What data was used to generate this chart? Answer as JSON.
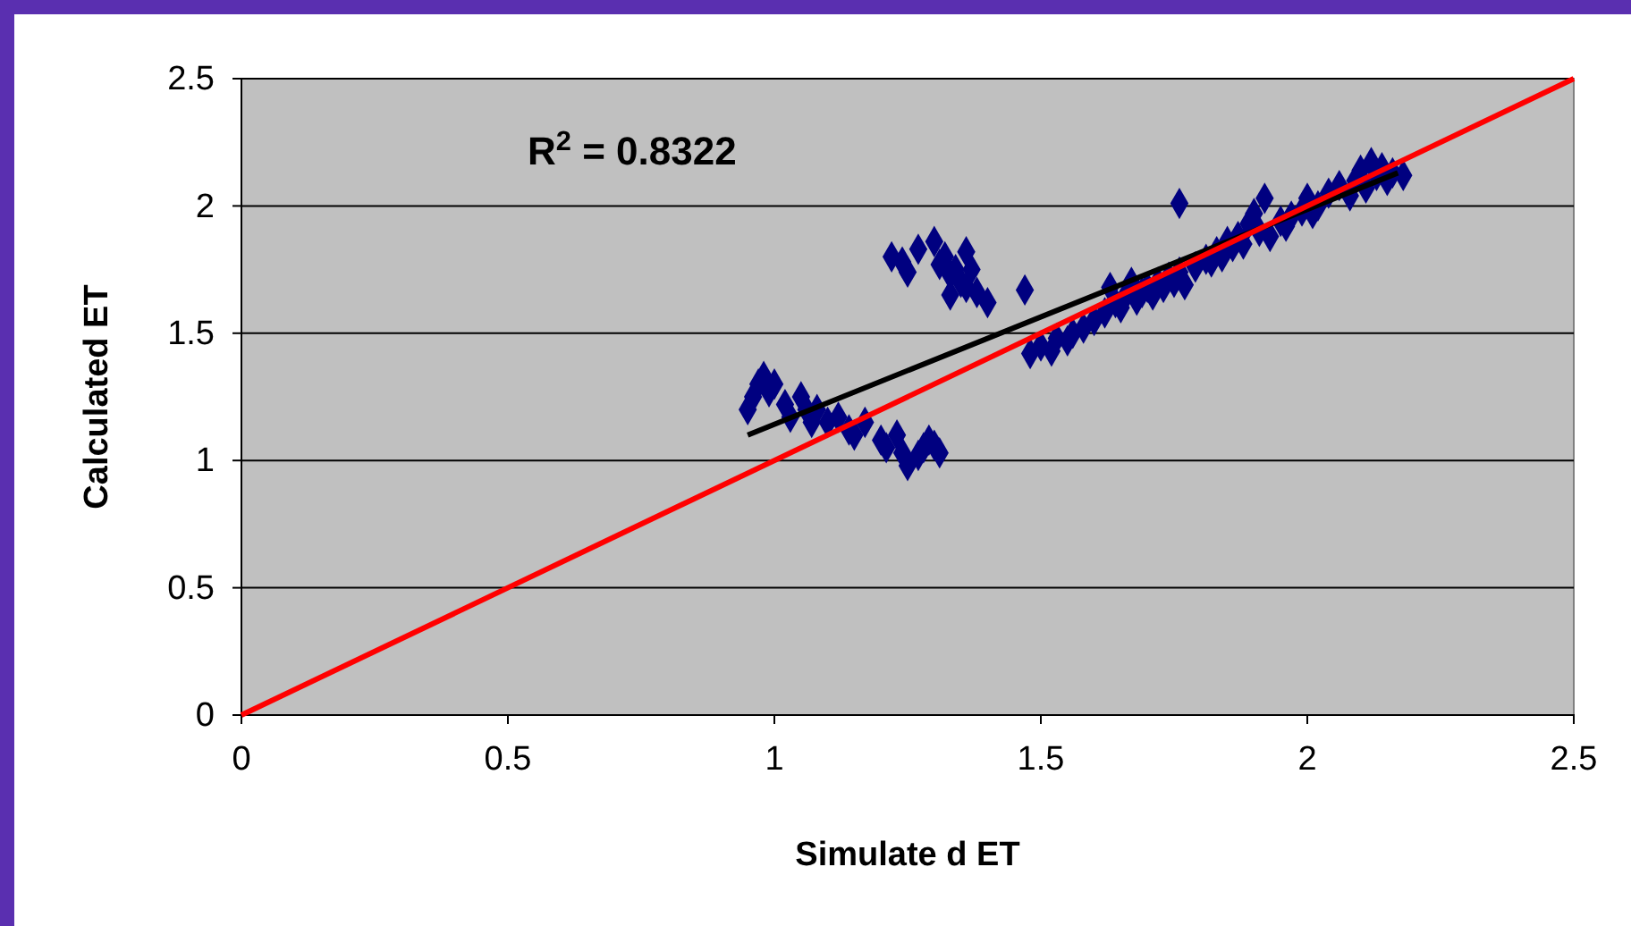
{
  "chart_data": {
    "type": "scatter",
    "xlabel": "Simulate d ET",
    "ylabel": "Calculated ET",
    "annotations": [
      "R$^{2}$ = 0.8322"
    ],
    "xlim": [
      0,
      2.5
    ],
    "xticks": [
      0,
      0.5,
      1,
      1.5,
      2,
      2.5
    ],
    "ylim": [
      0,
      2.5
    ],
    "yticks": [
      0,
      0.5,
      1,
      1.5,
      2,
      2.5
    ],
    "grid": "y",
    "series": [
      {
        "color": "#000080",
        "marker": "diamond",
        "x": [
          0.95,
          0.96,
          0.97,
          0.98,
          0.99,
          1.0,
          1.02,
          1.03,
          1.05,
          1.06,
          1.07,
          1.08,
          1.1,
          1.12,
          1.14,
          1.15,
          1.17,
          1.2,
          1.21,
          1.23,
          1.24,
          1.25,
          1.27,
          1.28,
          1.29,
          1.3,
          1.31,
          1.22,
          1.24,
          1.25,
          1.27,
          1.3,
          1.31,
          1.32,
          1.33,
          1.34,
          1.35,
          1.33,
          1.36,
          1.37,
          1.38,
          1.4,
          1.36,
          1.47,
          1.48,
          1.5,
          1.52,
          1.53,
          1.55,
          1.56,
          1.58,
          1.6,
          1.62,
          1.63,
          1.64,
          1.65,
          1.66,
          1.67,
          1.68,
          1.69,
          1.7,
          1.71,
          1.72,
          1.73,
          1.74,
          1.75,
          1.76,
          1.76,
          1.77,
          1.79,
          1.81,
          1.82,
          1.83,
          1.84,
          1.85,
          1.86,
          1.87,
          1.88,
          1.89,
          1.9,
          1.91,
          1.92,
          1.93,
          1.95,
          1.96,
          1.97,
          1.99,
          2.0,
          2.01,
          2.02,
          2.04,
          2.06,
          2.08,
          2.09,
          2.1,
          2.11,
          2.12,
          2.13,
          2.14,
          2.15,
          2.16,
          2.18
        ],
        "values": [
          1.2,
          1.25,
          1.3,
          1.33,
          1.27,
          1.3,
          1.22,
          1.17,
          1.25,
          1.2,
          1.15,
          1.2,
          1.15,
          1.17,
          1.12,
          1.1,
          1.15,
          1.08,
          1.05,
          1.1,
          1.03,
          0.98,
          1.02,
          1.05,
          1.08,
          1.06,
          1.03,
          1.8,
          1.78,
          1.74,
          1.83,
          1.86,
          1.77,
          1.8,
          1.73,
          1.75,
          1.7,
          1.65,
          1.82,
          1.75,
          1.66,
          1.62,
          1.68,
          1.67,
          1.42,
          1.45,
          1.43,
          1.48,
          1.47,
          1.5,
          1.52,
          1.55,
          1.58,
          1.68,
          1.62,
          1.6,
          1.65,
          1.7,
          1.63,
          1.66,
          1.68,
          1.65,
          1.7,
          1.68,
          1.72,
          1.7,
          1.74,
          2.01,
          1.69,
          1.76,
          1.79,
          1.78,
          1.82,
          1.8,
          1.86,
          1.84,
          1.88,
          1.85,
          1.93,
          1.97,
          1.9,
          2.03,
          1.88,
          1.94,
          1.92,
          1.96,
          1.98,
          2.03,
          1.97,
          2.0,
          2.05,
          2.08,
          2.04,
          2.1,
          2.14,
          2.07,
          2.17,
          2.12,
          2.15,
          2.1,
          2.13,
          2.12
        ]
      },
      {
        "type": "line",
        "color": "#000000",
        "marker": "none",
        "x": [
          0.95,
          2.17
        ],
        "values": [
          1.1,
          2.13
        ]
      },
      {
        "type": "line",
        "color": "#ff0000",
        "marker": "none",
        "x": [
          0,
          2.5
        ],
        "values": [
          0,
          2.5
        ]
      }
    ]
  }
}
